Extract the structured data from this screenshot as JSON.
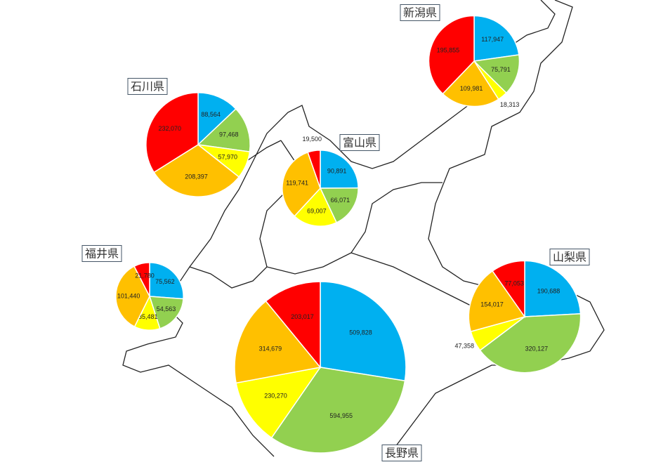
{
  "chart_data": [
    {
      "type": "pie",
      "title": "新潟県",
      "colors": [
        "#00b0f0",
        "#92d050",
        "#ffff00",
        "#ffc000",
        "#ff0000"
      ],
      "values": [
        117947,
        75791,
        18313,
        109981,
        195855
      ],
      "value_labels": [
        "117,947",
        "75,791",
        "18,313",
        "109,981",
        "195,855"
      ]
    },
    {
      "type": "pie",
      "title": "石川県",
      "colors": [
        "#00b0f0",
        "#92d050",
        "#ffff00",
        "#ffc000",
        "#ff0000"
      ],
      "values": [
        88564,
        97468,
        57970,
        208397,
        232070
      ],
      "value_labels": [
        "88,564",
        "97,468",
        "57,970",
        "208,397",
        "232,070"
      ]
    },
    {
      "type": "pie",
      "title": "富山県",
      "colors": [
        "#00b0f0",
        "#92d050",
        "#ffff00",
        "#ffc000",
        "#ff0000"
      ],
      "values": [
        90891,
        66071,
        69007,
        119741,
        19500
      ],
      "value_labels": [
        "90,891",
        "66,071",
        "69,007",
        "119,741",
        "19,500"
      ]
    },
    {
      "type": "pie",
      "title": "福井県",
      "colors": [
        "#00b0f0",
        "#92d050",
        "#ffff00",
        "#ffc000",
        "#ff0000"
      ],
      "values": [
        75562,
        54563,
        35481,
        101440,
        21780
      ],
      "value_labels": [
        "75,562",
        "54,563",
        "35,481",
        "101,440",
        "21,780"
      ]
    },
    {
      "type": "pie",
      "title": "長野県",
      "colors": [
        "#00b0f0",
        "#92d050",
        "#ffff00",
        "#ffc000",
        "#ff0000"
      ],
      "values": [
        509828,
        594955,
        230270,
        314679,
        203017
      ],
      "value_labels": [
        "509,828",
        "594,955",
        "230,270",
        "314,679",
        "203,017"
      ]
    },
    {
      "type": "pie",
      "title": "山梨県",
      "colors": [
        "#00b0f0",
        "#92d050",
        "#ffff00",
        "#ffc000",
        "#ff0000"
      ],
      "values": [
        190688,
        320127,
        47358,
        154017,
        77053
      ],
      "value_labels": [
        "190,688",
        "320,127",
        "47,358",
        "154,017",
        "77,053"
      ]
    }
  ]
}
